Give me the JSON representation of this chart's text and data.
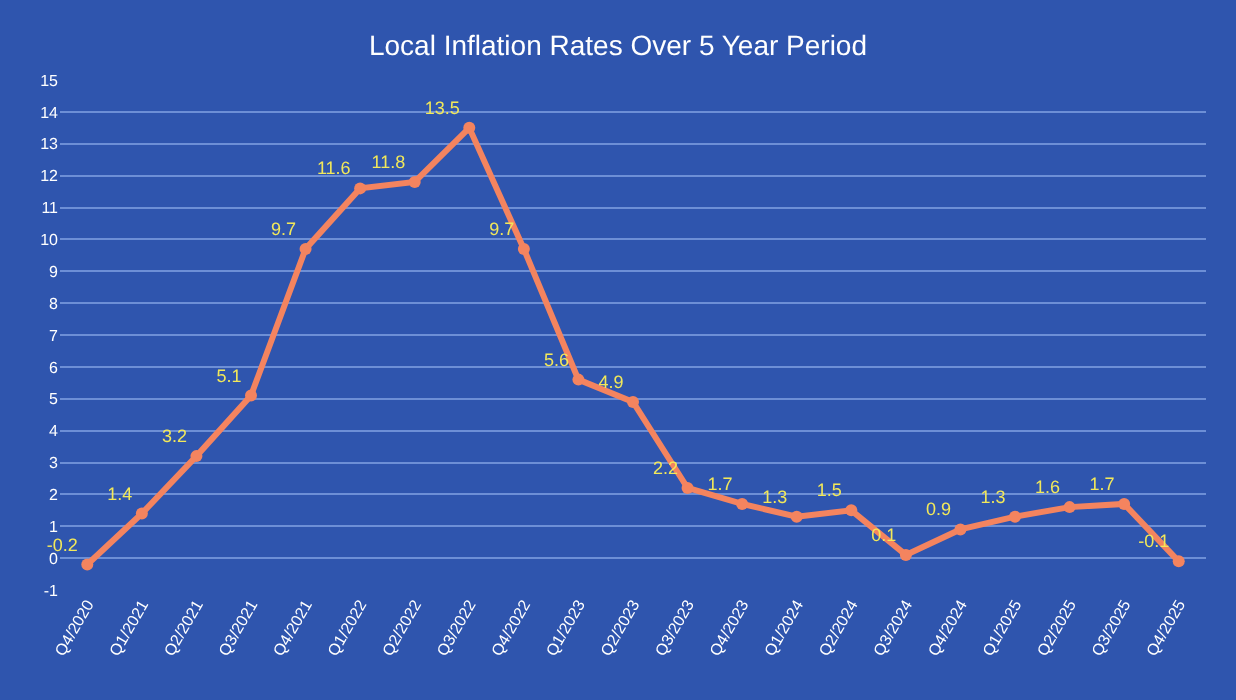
{
  "chart_data": {
    "type": "line",
    "title": "Local Inflation Rates Over 5 Year Period",
    "categories": [
      "Q4/2020",
      "Q1/2021",
      "Q2/2021",
      "Q3/2021",
      "Q4/2021",
      "Q1/2022",
      "Q2/2022",
      "Q3/2022",
      "Q4/2022",
      "Q1/2023",
      "Q2/2023",
      "Q3/2023",
      "Q4/2023",
      "Q1/2024",
      "Q2/2024",
      "Q3/2024",
      "Q4/2024",
      "Q1/2025",
      "Q2/2025",
      "Q3/2025",
      "Q4/2025"
    ],
    "values": [
      -0.2,
      1.4,
      3.2,
      5.1,
      9.7,
      11.6,
      11.8,
      13.5,
      9.7,
      5.6,
      4.9,
      2.2,
      1.7,
      1.3,
      1.5,
      0.1,
      0.9,
      1.3,
      1.6,
      1.7,
      -0.1
    ],
    "color": "#f4845f",
    "ylim": [
      -1,
      15
    ],
    "yticks": [
      -1,
      0,
      1,
      2,
      3,
      4,
      5,
      6,
      7,
      8,
      9,
      10,
      11,
      12,
      13,
      14,
      15
    ],
    "grid": "y",
    "marker": "circle",
    "line_style": "solid",
    "data_labels": true
  }
}
